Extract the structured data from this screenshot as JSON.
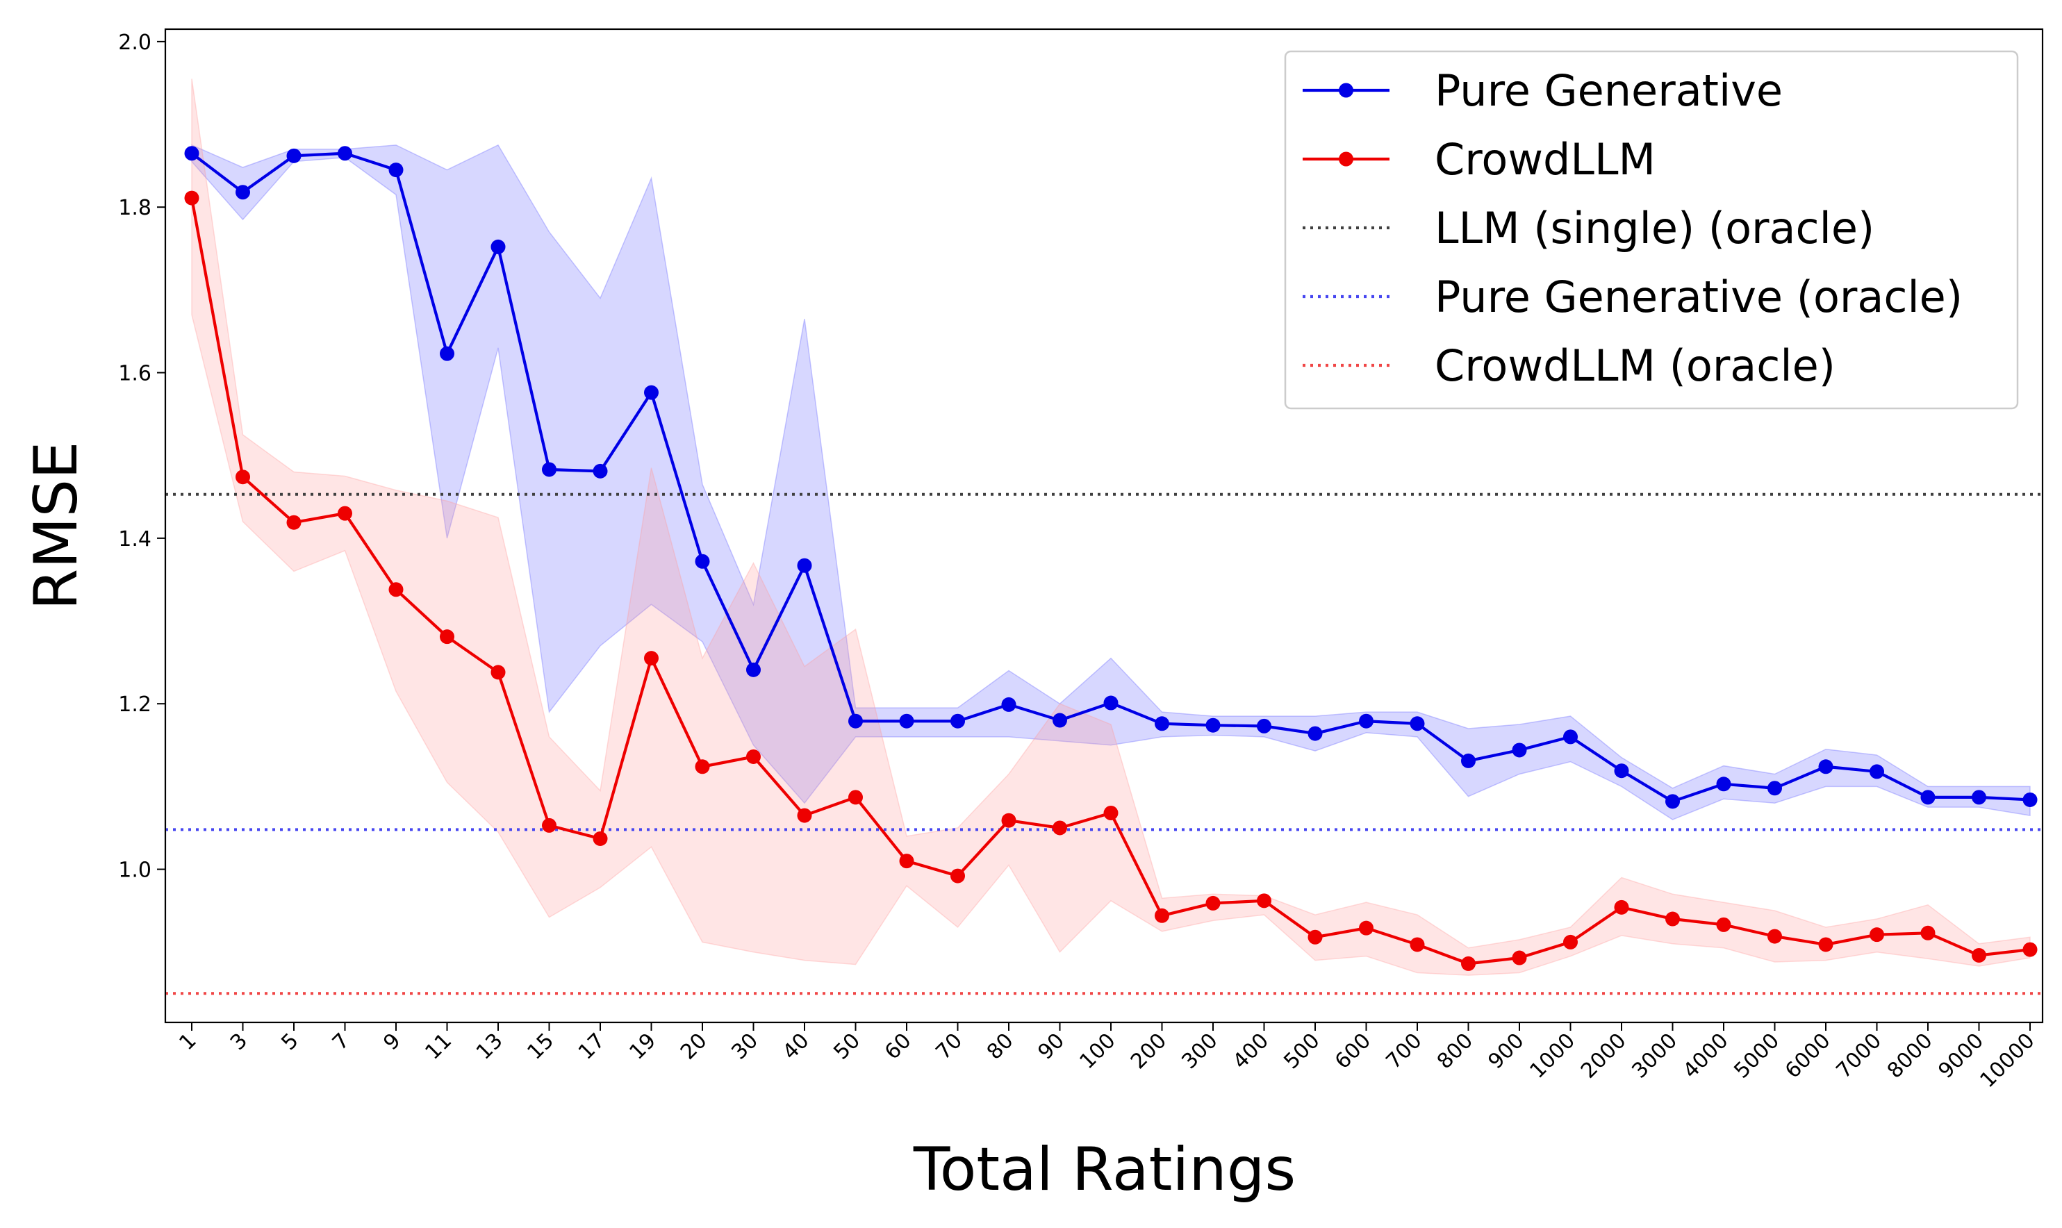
{
  "chart_data": {
    "type": "line",
    "title": "",
    "xlabel": "Total Ratings",
    "ylabel": "RMSE",
    "ylim": [
      0.815,
      2.015
    ],
    "yticks": [
      "1.0",
      "1.2",
      "1.4",
      "1.6",
      "1.8",
      "2.0"
    ],
    "ytick_values": [
      1.0,
      1.2,
      1.4,
      1.6,
      1.8,
      2.0
    ],
    "categories": [
      "1",
      "3",
      "5",
      "7",
      "9",
      "11",
      "13",
      "15",
      "17",
      "19",
      "20",
      "30",
      "40",
      "50",
      "60",
      "70",
      "80",
      "90",
      "100",
      "200",
      "300",
      "400",
      "500",
      "600",
      "700",
      "800",
      "900",
      "1000",
      "2000",
      "3000",
      "4000",
      "5000",
      "6000",
      "7000",
      "8000",
      "9000",
      "10000"
    ],
    "series": [
      {
        "name": "Pure Generative",
        "color": "#0000e6",
        "band_color": "#6464ff",
        "values": [
          1.865,
          1.818,
          1.862,
          1.865,
          1.845,
          1.623,
          1.752,
          1.483,
          1.481,
          1.576,
          1.372,
          1.241,
          1.367,
          1.179,
          1.179,
          1.179,
          1.199,
          1.18,
          1.201,
          1.176,
          1.174,
          1.173,
          1.164,
          1.179,
          1.176,
          1.131,
          1.144,
          1.16,
          1.119,
          1.082,
          1.103,
          1.098,
          1.124,
          1.118,
          1.087,
          1.087,
          1.084
        ],
        "lower": [
          1.855,
          1.785,
          1.855,
          1.86,
          1.815,
          1.4,
          1.63,
          1.19,
          1.27,
          1.32,
          1.275,
          1.15,
          1.08,
          1.16,
          1.16,
          1.16,
          1.16,
          1.155,
          1.15,
          1.16,
          1.162,
          1.16,
          1.143,
          1.165,
          1.16,
          1.088,
          1.115,
          1.13,
          1.1,
          1.06,
          1.085,
          1.08,
          1.1,
          1.1,
          1.075,
          1.075,
          1.065
        ],
        "upper": [
          1.875,
          1.848,
          1.87,
          1.87,
          1.875,
          1.845,
          1.875,
          1.77,
          1.69,
          1.835,
          1.465,
          1.32,
          1.665,
          1.195,
          1.195,
          1.195,
          1.24,
          1.2,
          1.255,
          1.19,
          1.185,
          1.185,
          1.185,
          1.19,
          1.19,
          1.17,
          1.175,
          1.185,
          1.135,
          1.098,
          1.125,
          1.115,
          1.145,
          1.138,
          1.1,
          1.1,
          1.1
        ]
      },
      {
        "name": "CrowdLLM",
        "color": "#ee0000",
        "band_color": "#ff9a9a",
        "values": [
          1.811,
          1.474,
          1.419,
          1.43,
          1.338,
          1.281,
          1.238,
          1.053,
          1.037,
          1.255,
          1.124,
          1.136,
          1.065,
          1.087,
          1.01,
          0.992,
          1.059,
          1.05,
          1.068,
          0.944,
          0.959,
          0.962,
          0.918,
          0.929,
          0.909,
          0.886,
          0.893,
          0.912,
          0.954,
          0.94,
          0.933,
          0.919,
          0.909,
          0.921,
          0.923,
          0.896,
          0.903
        ],
        "lower": [
          1.67,
          1.42,
          1.36,
          1.385,
          1.215,
          1.105,
          1.045,
          0.942,
          0.978,
          1.027,
          0.912,
          0.9,
          0.89,
          0.885,
          0.98,
          0.93,
          1.005,
          0.9,
          0.962,
          0.925,
          0.938,
          0.945,
          0.89,
          0.895,
          0.875,
          0.872,
          0.875,
          0.895,
          0.92,
          0.91,
          0.905,
          0.888,
          0.89,
          0.9,
          0.892,
          0.883,
          0.893
        ],
        "upper": [
          1.955,
          1.525,
          1.48,
          1.475,
          1.458,
          1.445,
          1.425,
          1.16,
          1.095,
          1.485,
          1.255,
          1.37,
          1.245,
          1.29,
          1.04,
          1.05,
          1.115,
          1.2,
          1.175,
          0.965,
          0.97,
          0.968,
          0.945,
          0.96,
          0.945,
          0.905,
          0.915,
          0.93,
          0.99,
          0.97,
          0.96,
          0.95,
          0.93,
          0.94,
          0.957,
          0.91,
          0.918
        ]
      }
    ],
    "reference_lines": [
      {
        "name": "LLM (single) (oracle)",
        "value": 1.453,
        "color": "#404040",
        "style": "dotted"
      },
      {
        "name": "Pure Generative (oracle)",
        "value": 1.048,
        "color": "#4646f0",
        "style": "dotted"
      },
      {
        "name": "CrowdLLM (oracle)",
        "value": 0.85,
        "color": "#f04646",
        "style": "dotted"
      }
    ],
    "legend": {
      "placement": "top-right",
      "entries": [
        "Pure Generative",
        "CrowdLLM",
        "LLM (single) (oracle)",
        "Pure Generative (oracle)",
        "CrowdLLM (oracle)"
      ]
    }
  }
}
